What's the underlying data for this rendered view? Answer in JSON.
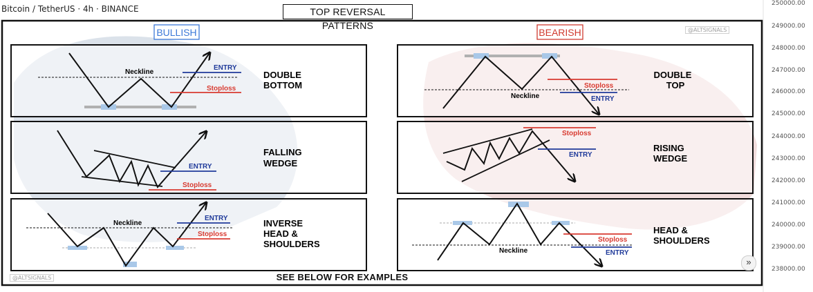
{
  "header": {
    "symbol": "Bitcoin / TetherUS · 4h · BINANCE"
  },
  "title": "TOP REVERSAL PATTERNS",
  "footer": "SEE BELOW FOR EXAMPLES",
  "watermark": "@ALTSIGNALS",
  "scroll_button": "»",
  "price_axis": [
    "250000.00",
    "249000.00",
    "248000.00",
    "247000.00",
    "246000.00",
    "245000.00",
    "244000.00",
    "243000.00",
    "242000.00",
    "241000.00",
    "240000.00",
    "239000.00",
    "238000.00"
  ],
  "sections": {
    "bullish": "BULLISH",
    "bearish": "BEARISH"
  },
  "colors": {
    "bullish": "#3b78d8",
    "bearish": "#d03a2f",
    "entry": "#1f3a9a",
    "stoploss": "#d83a30",
    "frame": "#111111"
  },
  "labels": {
    "neckline": "Neckline",
    "entry": "ENTRY",
    "stoploss": "Stoploss"
  },
  "patterns": {
    "double_bottom": [
      "DOUBLE",
      "BOTTOM"
    ],
    "falling_wedge": [
      "FALLING",
      "WEDGE"
    ],
    "inverse_hs": [
      "INVERSE",
      "HEAD &",
      "SHOULDERS"
    ],
    "double_top": [
      "DOUBLE",
      "TOP"
    ],
    "rising_wedge": [
      "RISING",
      "WEDGE"
    ],
    "head_shoulders": [
      "HEAD &",
      "SHOULDERS"
    ]
  }
}
